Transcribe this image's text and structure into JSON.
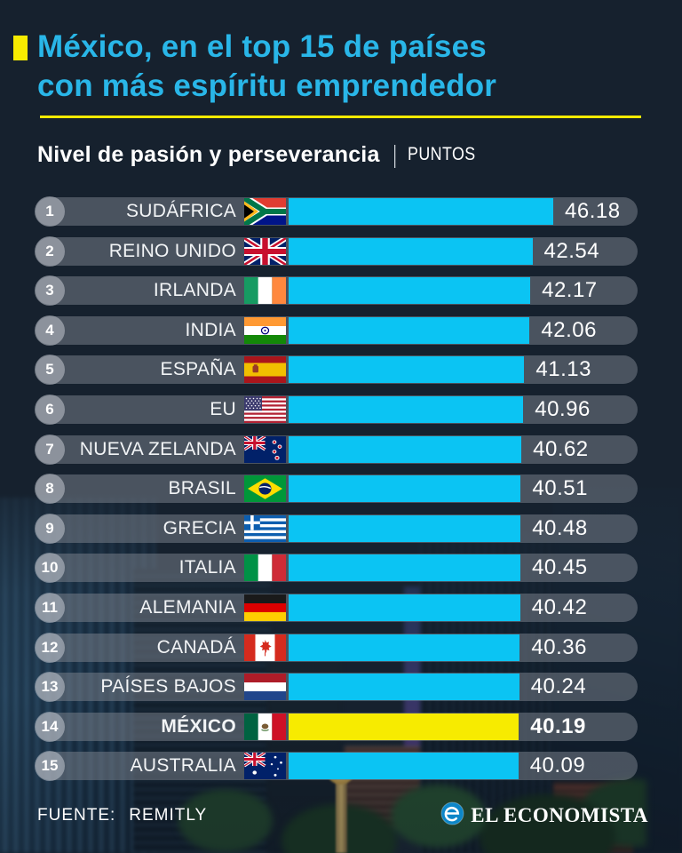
{
  "page": {
    "bg_color": "#16212e"
  },
  "header": {
    "title_line1": "México, en el top 15 de países",
    "title_line2": "con más espíritu emprendedor",
    "title_color": "#29b6e8",
    "accent_color": "#f7eb00",
    "subtitle": "Nivel de pasión y perseverancia",
    "subtitle_separator": "|",
    "subtitle_unit": "PUNTOS"
  },
  "chart_data": {
    "type": "bar",
    "orientation": "horizontal",
    "title": "México, en el top 15 de países con más espíritu emprendedor",
    "subtitle": "Nivel de pasión y perseverancia",
    "unit": "PUNTOS",
    "value_range": [
      0,
      46.18
    ],
    "bar_color": "#0bc4f3",
    "highlight_bar_color": "#f7eb00",
    "highlight_country": "MÉXICO",
    "grid": false,
    "legend": false,
    "rows": [
      {
        "rank": 1,
        "country": "SUDÁFRICA",
        "flag": "south-africa",
        "value": 46.18,
        "highlight": false
      },
      {
        "rank": 2,
        "country": "REINO UNIDO",
        "flag": "uk",
        "value": 42.54,
        "highlight": false
      },
      {
        "rank": 3,
        "country": "IRLANDA",
        "flag": "ireland",
        "value": 42.17,
        "highlight": false
      },
      {
        "rank": 4,
        "country": "INDIA",
        "flag": "india",
        "value": 42.06,
        "highlight": false
      },
      {
        "rank": 5,
        "country": "ESPAÑA",
        "flag": "spain",
        "value": 41.13,
        "highlight": false
      },
      {
        "rank": 6,
        "country": "EU",
        "flag": "usa",
        "value": 40.96,
        "highlight": false
      },
      {
        "rank": 7,
        "country": "NUEVA ZELANDA",
        "flag": "new-zealand",
        "value": 40.62,
        "highlight": false
      },
      {
        "rank": 8,
        "country": "BRASIL",
        "flag": "brazil",
        "value": 40.51,
        "highlight": false
      },
      {
        "rank": 9,
        "country": "GRECIA",
        "flag": "greece",
        "value": 40.48,
        "highlight": false
      },
      {
        "rank": 10,
        "country": "ITALIA",
        "flag": "italy",
        "value": 40.45,
        "highlight": false
      },
      {
        "rank": 11,
        "country": "ALEMANIA",
        "flag": "germany",
        "value": 40.42,
        "highlight": false
      },
      {
        "rank": 12,
        "country": "CANADÁ",
        "flag": "canada",
        "value": 40.36,
        "highlight": false
      },
      {
        "rank": 13,
        "country": "PAÍSES BAJOS",
        "flag": "netherlands",
        "value": 40.24,
        "highlight": false
      },
      {
        "rank": 14,
        "country": "MÉXICO",
        "flag": "mexico",
        "value": 40.19,
        "highlight": true
      },
      {
        "rank": 15,
        "country": "AUSTRALIA",
        "flag": "australia",
        "value": 40.09,
        "highlight": false
      }
    ]
  },
  "footer": {
    "source_label": "FUENTE:",
    "source_value": "REMITLY",
    "brand": "EL ECONOMISTA",
    "brand_icon": "el-economista-e-logo"
  }
}
